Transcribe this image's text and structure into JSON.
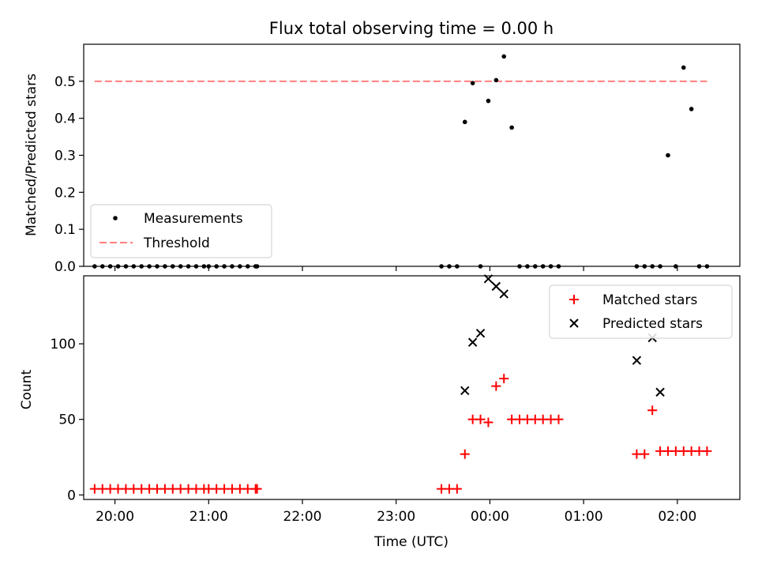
{
  "title": "Flux total observing time = 0.00 h",
  "chart_data": [
    {
      "type": "scatter",
      "panel": "top",
      "title": "Flux total observing time = 0.00 h",
      "xlabel": "",
      "ylabel": "Matched/Predicted stars",
      "xlim": [
        "19:40",
        "02:40"
      ],
      "ylim": [
        0,
        0.6
      ],
      "yticks": [
        0.0,
        0.1,
        0.2,
        0.3,
        0.4,
        0.5
      ],
      "ytick_labels": [
        "0.0",
        "0.1",
        "0.2",
        "0.3",
        "0.4",
        "0.5"
      ],
      "legend_position": "lower-left",
      "colors": {
        "measurements": "#000000",
        "threshold": "#ff7f7f"
      },
      "series": [
        {
          "name": "Measurements",
          "marker": "dot",
          "x": [
            "19:47",
            "19:52",
            "19:57",
            "20:02",
            "20:07",
            "20:12",
            "20:17",
            "20:22",
            "20:27",
            "20:32",
            "20:37",
            "20:42",
            "20:47",
            "20:52",
            "20:57",
            "21:00",
            "21:05",
            "21:10",
            "21:15",
            "21:20",
            "21:25",
            "21:30",
            "21:31",
            "23:29",
            "23:34",
            "23:39",
            "23:44",
            "23:49",
            "23:54",
            "23:59",
            "00:04",
            "00:09",
            "00:14",
            "00:19",
            "00:24",
            "00:29",
            "00:34",
            "00:39",
            "00:44",
            "01:34",
            "01:39",
            "01:44",
            "01:49",
            "01:54",
            "01:59",
            "02:04",
            "02:09",
            "02:14",
            "02:19"
          ],
          "y": [
            0,
            0,
            0,
            0,
            0,
            0,
            0,
            0,
            0,
            0,
            0,
            0,
            0,
            0,
            0,
            0,
            0,
            0,
            0,
            0,
            0,
            0,
            0,
            0,
            0,
            0,
            0.39,
            0.495,
            0,
            0.447,
            0.503,
            0.567,
            0.375,
            0,
            0,
            0,
            0,
            0,
            0,
            0,
            0,
            0,
            0,
            0.3,
            0,
            0.537,
            0.425,
            0,
            0
          ]
        },
        {
          "name": "Threshold",
          "style": "dashed",
          "x": [
            "19:47",
            "02:19"
          ],
          "y": [
            0.5,
            0.5
          ]
        }
      ]
    },
    {
      "type": "scatter",
      "panel": "bottom",
      "xlabel": "Time (UTC)",
      "ylabel": "Count",
      "xlim": [
        "19:40",
        "02:40"
      ],
      "ylim": [
        -3,
        145
      ],
      "xticks": [
        "20:00",
        "21:00",
        "22:00",
        "23:00",
        "00:00",
        "01:00",
        "02:00"
      ],
      "yticks": [
        0,
        50,
        100
      ],
      "ytick_labels": [
        "0",
        "50",
        "100"
      ],
      "legend_position": "upper-right",
      "colors": {
        "matched": "#ff0000",
        "predicted": "#000000"
      },
      "series": [
        {
          "name": "Matched stars",
          "marker": "plus",
          "x": [
            "19:47",
            "19:52",
            "19:57",
            "20:02",
            "20:07",
            "20:12",
            "20:17",
            "20:22",
            "20:27",
            "20:32",
            "20:37",
            "20:42",
            "20:47",
            "20:52",
            "20:57",
            "21:00",
            "21:05",
            "21:10",
            "21:15",
            "21:20",
            "21:25",
            "21:30",
            "21:31",
            "23:29",
            "23:34",
            "23:39",
            "23:44",
            "23:49",
            "23:54",
            "23:59",
            "00:04",
            "00:09",
            "00:14",
            "00:19",
            "00:24",
            "00:29",
            "00:34",
            "00:39",
            "00:44",
            "01:34",
            "01:39",
            "01:44",
            "01:49",
            "01:54",
            "01:59",
            "02:04",
            "02:09",
            "02:14",
            "02:19"
          ],
          "y": [
            4,
            4,
            4,
            4,
            4,
            4,
            4,
            4,
            4,
            4,
            4,
            4,
            4,
            4,
            4,
            4,
            4,
            4,
            4,
            4,
            4,
            4,
            4,
            4,
            4,
            4,
            27,
            50,
            50,
            48,
            72,
            77,
            50,
            50,
            50,
            50,
            50,
            50,
            50,
            27,
            27,
            56,
            29,
            29,
            29,
            29,
            29,
            29,
            29
          ]
        },
        {
          "name": "Predicted stars",
          "marker": "x",
          "x": [
            "23:44",
            "23:49",
            "23:54",
            "23:59",
            "00:04",
            "00:09",
            "01:34",
            "01:44",
            "01:49"
          ],
          "y": [
            69,
            101,
            107,
            143,
            138,
            133,
            89,
            104,
            68
          ]
        }
      ]
    }
  ]
}
